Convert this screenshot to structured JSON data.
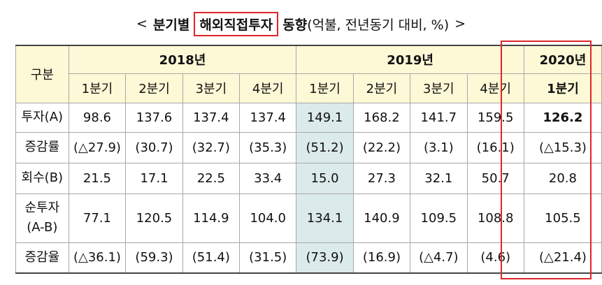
{
  "title": {
    "prefix": "<",
    "part1": "분기별",
    "boxed": "해외직접투자",
    "part2": "동향",
    "unit": "(억불, 전년동기 대비, %)",
    "suffix": ">"
  },
  "table": {
    "corner": "구분",
    "years": [
      "2018년",
      "2019년",
      "2020년"
    ],
    "quarters": [
      "1분기",
      "2분기",
      "3분기",
      "4분기",
      "1분기",
      "2분기",
      "3분기",
      "4분기",
      "1분기"
    ],
    "rows": [
      {
        "label": "투자(A)",
        "values": [
          "98.6",
          "137.6",
          "137.4",
          "137.4",
          "149.1",
          "168.2",
          "141.7",
          "159.5",
          "126.2"
        ]
      },
      {
        "label": "증감률",
        "values": [
          "(△27.9)",
          "(30.7)",
          "(32.7)",
          "(35.3)",
          "(51.2)",
          "(22.2)",
          "(3.1)",
          "(16.1)",
          "(△15.3)"
        ]
      },
      {
        "label": "회수(B)",
        "values": [
          "21.5",
          "17.1",
          "22.5",
          "33.4",
          "15.0",
          "27.3",
          "32.1",
          "50.7",
          "20.8"
        ]
      },
      {
        "label_line1": "순투자",
        "label_line2": "(A-B)",
        "values": [
          "77.1",
          "120.5",
          "114.9",
          "104.0",
          "134.1",
          "140.9",
          "109.5",
          "108.8",
          "105.5"
        ]
      },
      {
        "label": "증감율",
        "values": [
          "(△36.1)",
          "(59.3)",
          "(51.4)",
          "(31.5)",
          "(73.9)",
          "(16.9)",
          "(△4.7)",
          "(4.6)",
          "(△21.4)"
        ]
      }
    ]
  },
  "colors": {
    "header_bg": "#fdf8d6",
    "highlight_col_bg": "#dbeaea",
    "emphasis_border": "#e0242a"
  }
}
